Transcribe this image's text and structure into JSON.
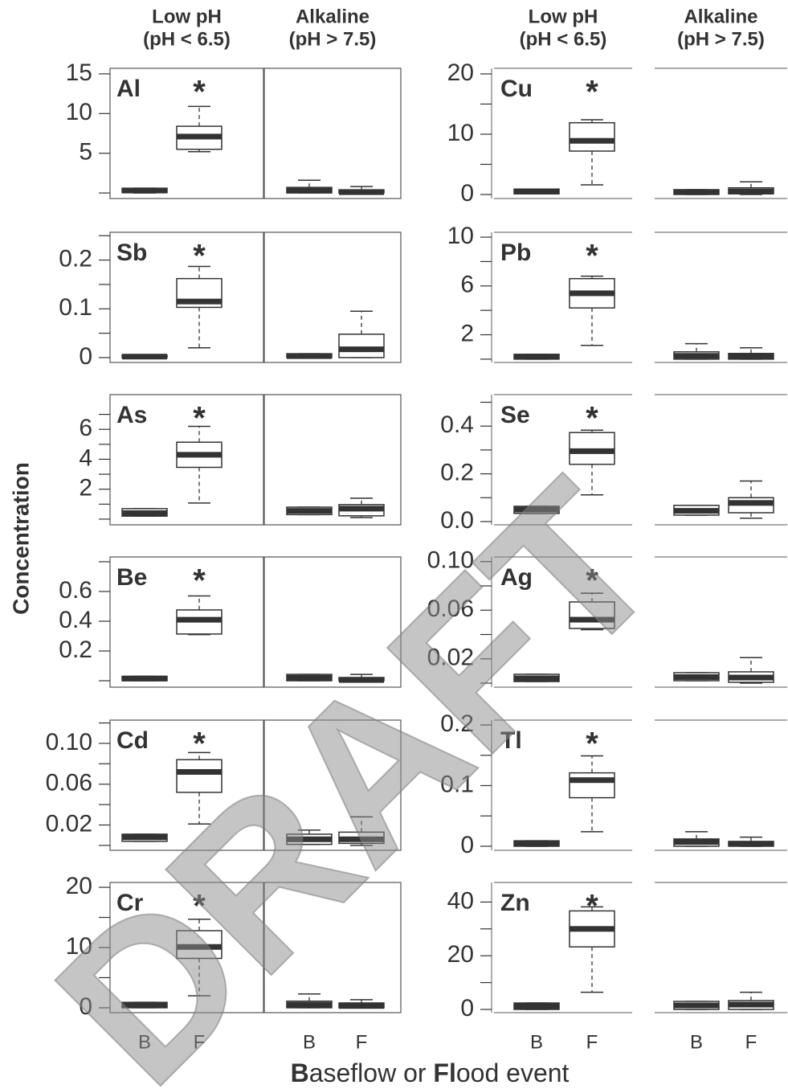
{
  "column_headers": [
    {
      "line1": "Low pH",
      "line2": "(pH < 6.5)"
    },
    {
      "line1": "Alkaline",
      "line2": "(pH > 7.5)"
    }
  ],
  "x_categories": [
    "B",
    "F"
  ],
  "y_label": "Concentration",
  "x_label_parts": [
    "B",
    "aseflow or ",
    "Fl",
    "ood event"
  ],
  "watermark": "DRAFT",
  "chart_data": [
    {
      "type": "box",
      "title": "Al",
      "annotation": "*",
      "ylim": [
        -0.7,
        15.7
      ],
      "yticks": [
        5,
        10,
        15
      ],
      "minor_yticks": [
        0
      ],
      "boxes": [
        [
          {
            "min": 0,
            "q1": 0.05,
            "median": 0.3,
            "q3": 0.6,
            "max": 0.6
          },
          {
            "min": 5.2,
            "q1": 5.5,
            "median": 7.1,
            "q3": 8.4,
            "max": 10.9
          }
        ],
        [
          {
            "min": 0,
            "q1": 0,
            "median": 0.3,
            "q3": 0.7,
            "max": 1.6
          },
          {
            "min": 0,
            "q1": 0,
            "median": 0.1,
            "q3": 0.4,
            "max": 0.8
          }
        ]
      ]
    },
    {
      "type": "box",
      "title": "Sb",
      "annotation": "*",
      "ylim": [
        -0.01,
        0.257
      ],
      "yticks": [
        0,
        0.1,
        0.2
      ],
      "minor_yticks": [
        0.05,
        0.15,
        0.25
      ],
      "boxes": [
        [
          {
            "min": 0,
            "q1": 0,
            "median": 0.002,
            "q3": 0.005,
            "max": 0.005
          },
          {
            "min": 0.02,
            "q1": 0.103,
            "median": 0.115,
            "q3": 0.162,
            "max": 0.187
          }
        ],
        [
          {
            "min": 0,
            "q1": 0,
            "median": 0.003,
            "q3": 0.008,
            "max": 0.008
          },
          {
            "min": 0,
            "q1": 0,
            "median": 0.017,
            "q3": 0.048,
            "max": 0.095
          }
        ]
      ]
    },
    {
      "type": "box",
      "title": "As",
      "annotation": "*",
      "ylim": [
        -0.38,
        8.32
      ],
      "yticks": [
        2,
        4,
        6
      ],
      "minor_yticks": [
        0,
        1,
        3,
        5,
        7
      ],
      "boxes": [
        [
          {
            "min": 0.2,
            "q1": 0.2,
            "median": 0.4,
            "q3": 0.7,
            "max": 0.7
          },
          {
            "min": 1.08,
            "q1": 3.46,
            "median": 4.3,
            "q3": 5.14,
            "max": 6.2
          }
        ],
        [
          {
            "min": 0.3,
            "q1": 0.3,
            "median": 0.55,
            "q3": 0.8,
            "max": 0.8
          },
          {
            "min": 0.1,
            "q1": 0.22,
            "median": 0.7,
            "q3": 0.97,
            "max": 1.4
          }
        ]
      ]
    },
    {
      "type": "box",
      "title": "Be",
      "annotation": "*",
      "ylim": [
        -0.043,
        0.832
      ],
      "yticks": [
        0.2,
        0.4,
        0.6
      ],
      "minor_yticks": [
        0,
        0.8
      ],
      "boxes": [
        [
          {
            "min": 0,
            "q1": 0,
            "median": 0.015,
            "q3": 0.03,
            "max": 0.03
          },
          {
            "min": 0.31,
            "q1": 0.314,
            "median": 0.41,
            "q3": 0.476,
            "max": 0.57
          }
        ],
        [
          {
            "min": 0,
            "q1": 0,
            "median": 0.02,
            "q3": 0.043,
            "max": 0.043
          },
          {
            "min": 0,
            "q1": 0,
            "median": 0.005,
            "q3": 0.022,
            "max": 0.043
          }
        ]
      ]
    },
    {
      "type": "box",
      "title": "Cd",
      "annotation": "*",
      "ylim": [
        -0.0048,
        0.1228
      ],
      "yticks": [
        0.02,
        0.06,
        {
          "value": 0.1,
          "label": "0.10"
        }
      ],
      "minor_yticks": [
        0,
        0.04,
        0.08,
        0.12
      ],
      "boxes": [
        [
          {
            "min": 0.004,
            "q1": 0.004,
            "median": 0.008,
            "q3": 0.011,
            "max": 0.011
          },
          {
            "min": 0.021,
            "q1": 0.052,
            "median": 0.072,
            "q3": 0.084,
            "max": 0.091
          }
        ],
        [
          {
            "min": 0.001,
            "q1": 0.001,
            "median": 0.006,
            "q3": 0.011,
            "max": 0.015
          },
          {
            "min": 0,
            "q1": 0.002,
            "median": 0.006,
            "q3": 0.013,
            "max": 0.028
          }
        ]
      ]
    },
    {
      "type": "box",
      "title": "Cr",
      "annotation": "*",
      "ylim": [
        -0.81,
        20.81
      ],
      "yticks": [
        0,
        10,
        20
      ],
      "minor_yticks": [
        5,
        15
      ],
      "boxes": [
        [
          {
            "min": 0,
            "q1": 0,
            "median": 0.5,
            "q3": 0.9,
            "max": 0.9
          },
          {
            "min": 2,
            "q1": 8.2,
            "median": 10.1,
            "q3": 12.8,
            "max": 14.7
          }
        ],
        [
          {
            "min": 0,
            "q1": 0,
            "median": 0.5,
            "q3": 1.1,
            "max": 2.3
          },
          {
            "min": 0,
            "q1": 0,
            "median": 0.3,
            "q3": 0.8,
            "max": 1.35
          }
        ]
      ]
    },
    {
      "type": "box",
      "title": "Cu",
      "annotation": "*",
      "ylim": [
        -0.67,
        20.93
      ],
      "yticks": [
        0,
        10,
        20
      ],
      "minor_yticks": [
        5,
        15
      ],
      "boxes": [
        [
          {
            "min": 0.1,
            "q1": 0.1,
            "median": 0.5,
            "q3": 0.9,
            "max": 0.9
          },
          {
            "min": 1.6,
            "q1": 7.2,
            "median": 8.9,
            "q3": 11.9,
            "max": 12.4
          }
        ],
        [
          {
            "min": 0,
            "q1": 0,
            "median": 0.4,
            "q3": 0.8,
            "max": 0.8
          },
          {
            "min": 0,
            "q1": 0.1,
            "median": 0.5,
            "q3": 1.1,
            "max": 2.1
          }
        ]
      ]
    },
    {
      "type": "box",
      "title": "Pb",
      "annotation": "*",
      "ylim": [
        -0.27,
        10.4
      ],
      "yticks": [
        2,
        6,
        10
      ],
      "minor_yticks": [
        0,
        4,
        8
      ],
      "boxes": [
        [
          {
            "min": 0,
            "q1": 0,
            "median": 0.2,
            "q3": 0.4,
            "max": 0.4
          },
          {
            "min": 1.13,
            "q1": 4.2,
            "median": 5.4,
            "q3": 6.6,
            "max": 6.8
          }
        ],
        [
          {
            "min": 0,
            "q1": 0,
            "median": 0.27,
            "q3": 0.6,
            "max": 1.27
          },
          {
            "min": 0,
            "q1": 0,
            "median": 0.2,
            "q3": 0.47,
            "max": 0.93
          }
        ]
      ]
    },
    {
      "type": "box",
      "title": "Se",
      "annotation": "*",
      "ylim": [
        -0.0136,
        0.532
      ],
      "yticks": [
        {
          "value": 0,
          "label": "0.0"
        },
        0.2,
        0.4
      ],
      "minor_yticks": [
        0.1,
        0.3,
        0.5
      ],
      "boxes": [
        [
          {
            "min": 0.034,
            "q1": 0.034,
            "median": 0.05,
            "q3": 0.064,
            "max": 0.064
          },
          {
            "min": 0.112,
            "q1": 0.24,
            "median": 0.295,
            "q3": 0.373,
            "max": 0.383
          }
        ],
        [
          {
            "min": 0.027,
            "q1": 0.027,
            "median": 0.045,
            "q3": 0.068,
            "max": 0.068
          },
          {
            "min": 0.014,
            "q1": 0.037,
            "median": 0.078,
            "q3": 0.1,
            "max": 0.17
          }
        ]
      ]
    },
    {
      "type": "box",
      "title": "Ag",
      "annotation": "*",
      "ylim": [
        -0.0033,
        0.1038
      ],
      "yticks": [
        0.02,
        0.06,
        {
          "value": 0.1,
          "label": "0.10"
        }
      ],
      "minor_yticks": [
        0,
        0.04,
        0.08
      ],
      "boxes": [
        [
          {
            "min": 0.0013,
            "q1": 0.0013,
            "median": 0.004,
            "q3": 0.0073,
            "max": 0.0073
          },
          {
            "min": 0.044,
            "q1": 0.045,
            "median": 0.0522,
            "q3": 0.0668,
            "max": 0.074
          }
        ],
        [
          {
            "min": 0.002,
            "q1": 0.002,
            "median": 0.005,
            "q3": 0.0086,
            "max": 0.0086
          },
          {
            "min": 0,
            "q1": 0.0007,
            "median": 0.0046,
            "q3": 0.0093,
            "max": 0.021
          }
        ]
      ]
    },
    {
      "type": "box",
      "title": "Tl",
      "annotation": "*",
      "ylim": [
        -0.0067,
        0.208
      ],
      "yticks": [
        0,
        0.1,
        0.2
      ],
      "minor_yticks": [
        0.05,
        0.15
      ],
      "boxes": [
        [
          {
            "min": 0,
            "q1": 0,
            "median": 0.005,
            "q3": 0.009,
            "max": 0.009
          },
          {
            "min": 0.024,
            "q1": 0.08,
            "median": 0.109,
            "q3": 0.121,
            "max": 0.149
          }
        ],
        [
          {
            "min": 0,
            "q1": 0,
            "median": 0.007,
            "q3": 0.012,
            "max": 0.024
          },
          {
            "min": 0,
            "q1": 0,
            "median": 0.004,
            "q3": 0.008,
            "max": 0.015
          }
        ]
      ]
    },
    {
      "type": "box",
      "title": "Zn",
      "annotation": "*",
      "ylim": [
        -1.2,
        47.3
      ],
      "yticks": [
        0,
        20,
        40
      ],
      "minor_yticks": [
        10,
        30
      ],
      "boxes": [
        [
          {
            "min": 0,
            "q1": 0,
            "median": 1.2,
            "q3": 2.4,
            "max": 2.4
          },
          {
            "min": 6.4,
            "q1": 23.3,
            "median": 30,
            "q3": 36.7,
            "max": 38.2
          }
        ],
        [
          {
            "min": 0,
            "q1": 0,
            "median": 1.5,
            "q3": 3,
            "max": 3
          },
          {
            "min": 0,
            "q1": 0,
            "median": 1.8,
            "q3": 3.3,
            "max": 6.4
          }
        ]
      ]
    }
  ]
}
